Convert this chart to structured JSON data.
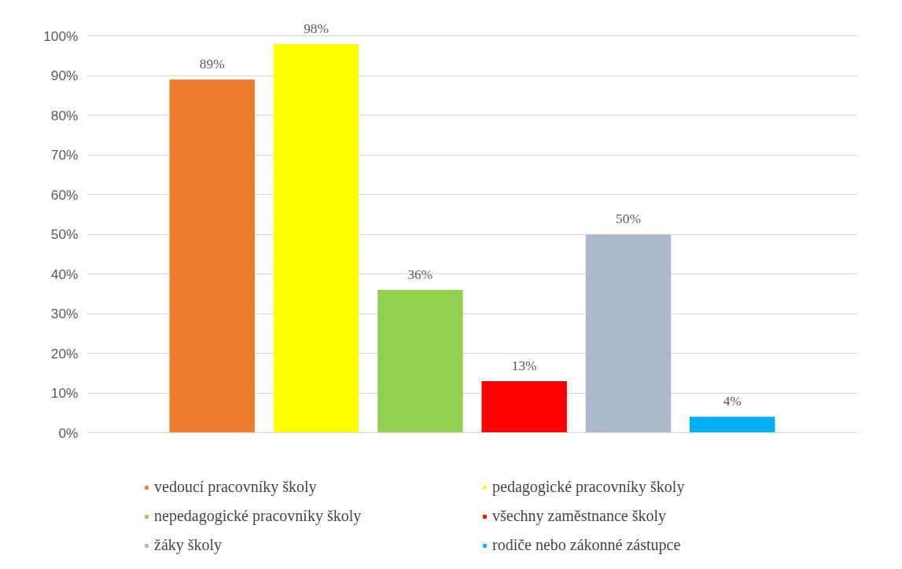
{
  "chart_data": {
    "type": "bar",
    "categories": [
      null
    ],
    "series": [
      {
        "name": "vedoucí pracovníky školy",
        "color": "#ed7d31",
        "values": [
          89
        ],
        "value_labels": [
          "89%"
        ]
      },
      {
        "name": "pedagogické pracovníky školy",
        "color": "#ffff00",
        "values": [
          98
        ],
        "value_labels": [
          "98%"
        ]
      },
      {
        "name": "nepedagogické pracovníky školy",
        "color": "#92d050",
        "values": [
          36
        ],
        "value_labels": [
          "36%"
        ]
      },
      {
        "name": "všechny zaměstnance školy",
        "color": "#ff0000",
        "values": [
          13
        ],
        "value_labels": [
          "13%"
        ]
      },
      {
        "name": "žáky školy",
        "color": "#adb9ca",
        "values": [
          50
        ],
        "value_labels": [
          "50%"
        ]
      },
      {
        "name": "rodiče nebo zákonné zástupce",
        "color": "#00b0f0",
        "values": [
          4
        ],
        "value_labels": [
          "4%"
        ]
      }
    ],
    "ylim": [
      0,
      100
    ],
    "yticks": [
      {
        "value": 0,
        "label": "0%"
      },
      {
        "value": 10,
        "label": "10%"
      },
      {
        "value": 20,
        "label": "20%"
      },
      {
        "value": 30,
        "label": "30%"
      },
      {
        "value": 40,
        "label": "40%"
      },
      {
        "value": 50,
        "label": "50%"
      },
      {
        "value": 60,
        "label": "60%"
      },
      {
        "value": 70,
        "label": "70%"
      },
      {
        "value": 80,
        "label": "80%"
      },
      {
        "value": 90,
        "label": "90%"
      },
      {
        "value": 100,
        "label": "100%"
      }
    ],
    "grid": "y",
    "legend": "bottom"
  }
}
